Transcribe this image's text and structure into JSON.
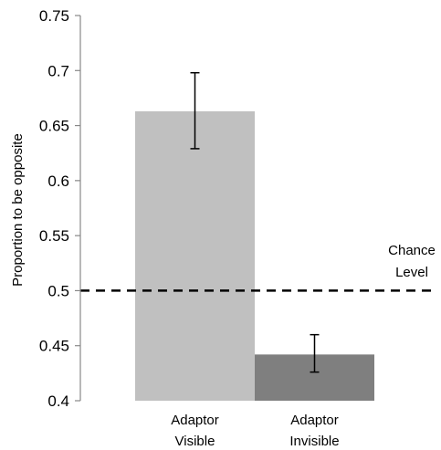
{
  "chart_data": {
    "type": "bar",
    "title": "",
    "xlabel": "",
    "ylabel": "Proportion to be opposite",
    "ylim": [
      0.4,
      0.75
    ],
    "yticks": [
      0.4,
      0.45,
      0.5,
      0.55,
      0.6,
      0.65,
      0.7,
      0.75
    ],
    "ytick_labels": [
      "0.4",
      "0.45",
      "0.5",
      "0.55",
      "0.6",
      "0.65",
      "0.7",
      "0.75"
    ],
    "grid": false,
    "categories": [
      {
        "line1": "Adaptor",
        "line2": "Visible"
      },
      {
        "line1": "Adaptor",
        "line2": "Invisible"
      }
    ],
    "values": [
      0.663,
      0.442
    ],
    "error_low": [
      0.629,
      0.426
    ],
    "error_high": [
      0.698,
      0.46
    ],
    "bar_colors": [
      "#c0c0c0",
      "#7f7f7f"
    ],
    "reference_line": {
      "value": 0.5,
      "style": "dashed",
      "label_line1": "Chance",
      "label_line2": "Level"
    }
  }
}
